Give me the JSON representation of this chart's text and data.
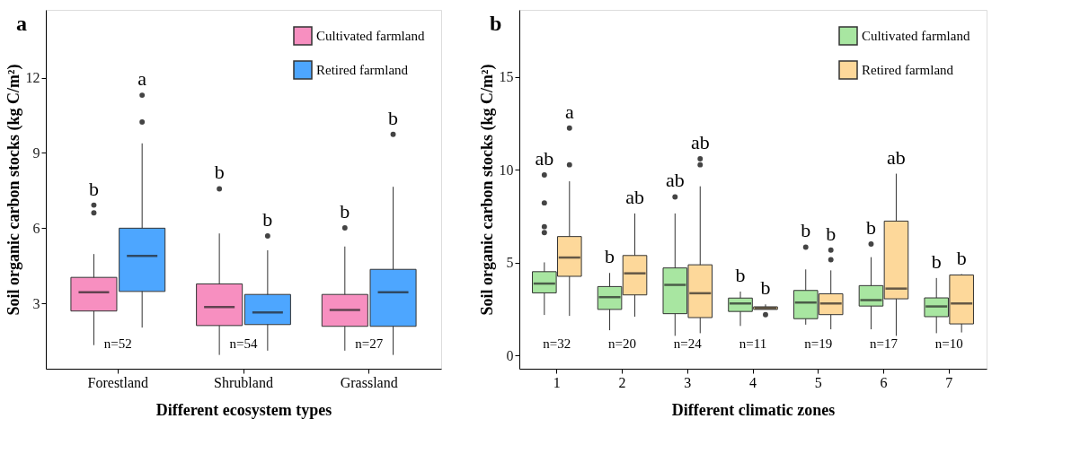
{
  "chart_data": [
    {
      "type": "box",
      "title": "a",
      "xlabel": "Different ecosystem types",
      "ylabel": "Soil organic carbon stocks (kg C/m²)",
      "categories": [
        "Forestland",
        "Shrubland",
        "Grassland"
      ],
      "ylim": [
        0.4,
        14.7
      ],
      "yticks": [
        3,
        6,
        9,
        12
      ],
      "legend": "top right",
      "series": [
        {
          "name": "Cultivated farmland",
          "color": "#f78fc0",
          "boxes": [
            {
              "low": 1.34,
              "q1": 2.7,
              "median": 3.45,
              "q3": 4.04,
              "high": 4.97,
              "outliers": [
                6.61,
                6.92
              ]
            },
            {
              "low": 0.95,
              "q1": 2.12,
              "median": 2.86,
              "q3": 3.78,
              "high": 5.79,
              "outliers": [
                7.57
              ]
            },
            {
              "low": 1.12,
              "q1": 2.09,
              "median": 2.74,
              "q3": 3.36,
              "high": 5.27,
              "outliers": [
                6.01
              ]
            }
          ]
        },
        {
          "name": "Retired farmland",
          "color": "#4da6ff",
          "boxes": [
            {
              "low": 2.04,
              "q1": 3.48,
              "median": 4.9,
              "q3": 6.0,
              "high": 9.38,
              "outliers": [
                10.23,
                11.3
              ]
            },
            {
              "low": 1.12,
              "q1": 2.16,
              "median": 2.64,
              "q3": 3.36,
              "high": 5.12,
              "outliers": [
                5.69
              ]
            },
            {
              "low": 0.95,
              "q1": 2.09,
              "median": 3.45,
              "q3": 4.36,
              "high": 7.65,
              "outliers": [
                9.74
              ]
            }
          ]
        }
      ],
      "annotations": [
        "b",
        "a",
        "n=52",
        "b",
        "b",
        "n=54",
        "b",
        "b",
        "n=27"
      ]
    },
    {
      "type": "box",
      "title": "b",
      "xlabel": "Different climatic zones",
      "ylabel": "Soil organic carbon stocks (kg C/m²)",
      "categories": [
        "1",
        "2",
        "3",
        "4",
        "5",
        "6",
        "7"
      ],
      "ylim": [
        -0.7,
        18.6
      ],
      "yticks": [
        0,
        5,
        10,
        15
      ],
      "legend": "top right",
      "series": [
        {
          "name": "Cultivated farmland",
          "color": "#a8e6a1",
          "boxes": [
            {
              "low": 2.19,
              "q1": 3.38,
              "median": 3.88,
              "q3": 4.52,
              "high": 5.02,
              "outliers": [
                6.62,
                6.94,
                8.22,
                9.72
              ]
            },
            {
              "low": 1.37,
              "q1": 2.49,
              "median": 3.15,
              "q3": 3.72,
              "high": 4.45
            },
            {
              "low": 1.07,
              "q1": 2.26,
              "median": 3.81,
              "q3": 4.72,
              "high": 7.65,
              "outliers": [
                8.54
              ]
            },
            {
              "low": 1.6,
              "q1": 2.38,
              "median": 2.81,
              "q3": 3.1,
              "high": 3.45
            },
            {
              "low": 1.67,
              "q1": 1.99,
              "median": 2.86,
              "q3": 3.51,
              "high": 4.64,
              "outliers": [
                5.84
              ]
            },
            {
              "low": 1.42,
              "q1": 2.67,
              "median": 2.99,
              "q3": 3.77,
              "high": 5.3,
              "outliers": [
                6.01
              ]
            },
            {
              "low": 1.21,
              "q1": 2.1,
              "median": 2.65,
              "q3": 3.11,
              "high": 4.18
            }
          ]
        },
        {
          "name": "Retired farmland",
          "color": "#fdd89a",
          "boxes": [
            {
              "low": 2.14,
              "q1": 4.27,
              "median": 5.28,
              "q3": 6.41,
              "high": 9.38,
              "outliers": [
                10.27,
                12.24
              ]
            },
            {
              "low": 2.1,
              "q1": 3.27,
              "median": 4.43,
              "q3": 5.39,
              "high": 7.65
            },
            {
              "low": 1.21,
              "q1": 2.05,
              "median": 3.36,
              "q3": 4.89,
              "high": 9.11,
              "outliers": [
                10.27,
                10.59
              ]
            },
            {
              "low": 2.49,
              "q1": 2.49,
              "median": 2.56,
              "q3": 2.63,
              "high": 2.76,
              "outliers": [
                2.21
              ]
            },
            {
              "low": 1.42,
              "q1": 2.21,
              "median": 2.81,
              "q3": 3.33,
              "high": 4.59,
              "outliers": [
                5.16,
                5.68
              ]
            },
            {
              "low": 1.07,
              "q1": 3.06,
              "median": 3.61,
              "q3": 7.24,
              "high": 9.79
            },
            {
              "low": 1.25,
              "q1": 1.71,
              "median": 2.81,
              "q3": 4.34,
              "high": 4.39
            }
          ]
        }
      ],
      "annotations": [
        "ab",
        "a",
        "n=32",
        "b",
        "ab",
        "n=20",
        "ab",
        "ab",
        "n=24",
        "b",
        "b",
        "n=11",
        "b",
        "b",
        "n=19",
        "b",
        "ab",
        "n=17",
        "b",
        "b",
        "n=10"
      ]
    }
  ]
}
